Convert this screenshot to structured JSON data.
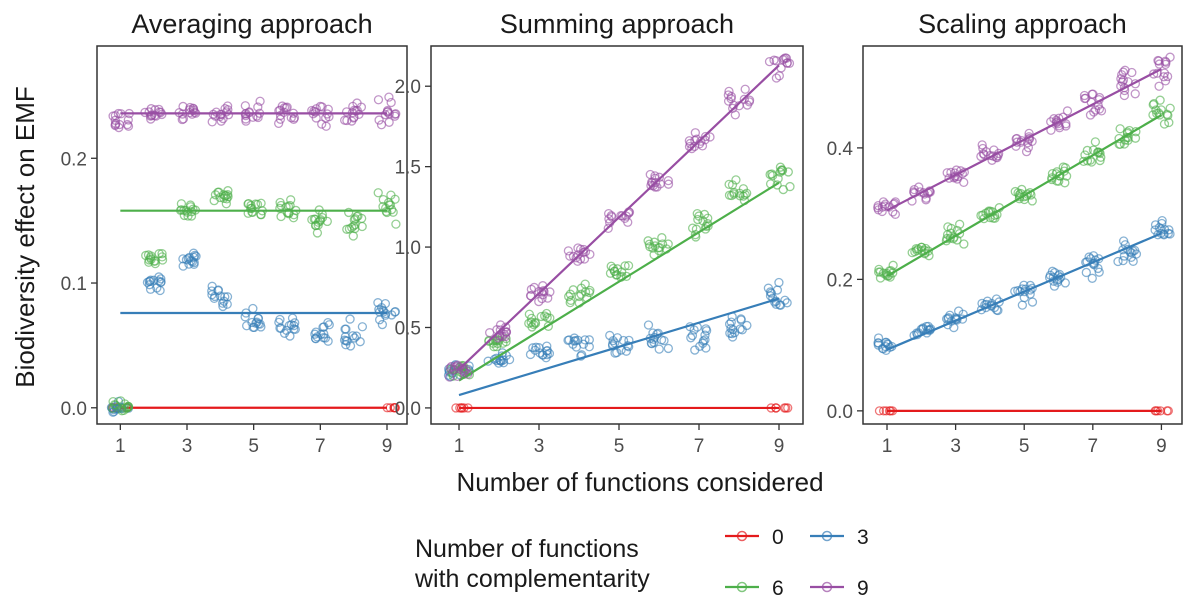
{
  "chart_data": {
    "type": "scatter",
    "ylabel": "Biodiversity effect on EMF",
    "xlabel": "Number of functions considered",
    "x_ticks": [
      1,
      3,
      5,
      7,
      9
    ],
    "xlim": [
      0.3,
      9.6
    ],
    "colors": {
      "0": "#e41a1c",
      "3": "#377eb8",
      "6": "#4daf4a",
      "9": "#984ea3"
    },
    "legend": {
      "title_lines": [
        "Number of functions",
        "with complementarity"
      ],
      "placement": "bottom",
      "entries": [
        {
          "label": "0",
          "key": "0"
        },
        {
          "label": "3",
          "key": "3"
        },
        {
          "label": "6",
          "key": "6"
        },
        {
          "label": "9",
          "key": "9"
        }
      ]
    },
    "panels": [
      {
        "title": "Averaging approach",
        "ylim": [
          -0.013,
          0.29
        ],
        "y_ticks": [
          0.0,
          0.1,
          0.2
        ],
        "y_tick_labels": [
          "0.0",
          "0.1",
          "0.2"
        ],
        "series": [
          {
            "key": "0",
            "x": [
              1,
              9
            ],
            "y": [
              0,
              0
            ],
            "fit": [
              [
                1,
                0.0
              ],
              [
                9,
                0.0
              ]
            ]
          },
          {
            "key": "3",
            "x": [
              1,
              2,
              3,
              4,
              5,
              6,
              7,
              8,
              9
            ],
            "y": [
              0,
              0.1,
              0.12,
              0.09,
              0.07,
              0.065,
              0.06,
              0.058,
              0.075
            ],
            "fit": [
              [
                1,
                0.076
              ],
              [
                9,
                0.076
              ]
            ]
          },
          {
            "key": "6",
            "x": [
              1,
              2,
              3,
              4,
              5,
              6,
              7,
              8,
              9
            ],
            "y": [
              0,
              0.12,
              0.16,
              0.17,
              0.16,
              0.16,
              0.15,
              0.15,
              0.158
            ],
            "fit": [
              [
                1,
                0.158
              ],
              [
                9,
                0.158
              ]
            ]
          },
          {
            "key": "9",
            "x": [
              1,
              2,
              3,
              4,
              5,
              6,
              7,
              8,
              9
            ],
            "y": [
              0.23,
              0.235,
              0.236,
              0.236,
              0.236,
              0.236,
              0.236,
              0.236,
              0.236
            ],
            "fit": [
              [
                1,
                0.236
              ],
              [
                9,
                0.236
              ]
            ]
          }
        ]
      },
      {
        "title": "Summing approach",
        "ylim": [
          -0.1,
          2.25
        ],
        "y_ticks": [
          0.0,
          0.5,
          1.0,
          1.5,
          2.0
        ],
        "y_tick_labels": [
          "0.0",
          "0.5",
          "1.0",
          "1.5",
          "2.0"
        ],
        "series": [
          {
            "key": "0",
            "x": [
              1,
              9
            ],
            "y": [
              0,
              0
            ],
            "fit": [
              [
                1,
                0.0
              ],
              [
                9,
                0.0
              ]
            ]
          },
          {
            "key": "3",
            "x": [
              1,
              2,
              3,
              4,
              5,
              6,
              7,
              8,
              9
            ],
            "y": [
              0.23,
              0.3,
              0.35,
              0.38,
              0.4,
              0.42,
              0.45,
              0.5,
              0.68
            ],
            "fit": [
              [
                1,
                0.08
              ],
              [
                9,
                0.68
              ]
            ]
          },
          {
            "key": "6",
            "x": [
              1,
              2,
              3,
              4,
              5,
              6,
              7,
              8,
              9
            ],
            "y": [
              0.23,
              0.4,
              0.55,
              0.7,
              0.85,
              1.0,
              1.15,
              1.35,
              1.42
            ],
            "fit": [
              [
                1,
                0.17
              ],
              [
                9,
                1.4
              ]
            ]
          },
          {
            "key": "9",
            "x": [
              1,
              2,
              3,
              4,
              5,
              6,
              7,
              8,
              9
            ],
            "y": [
              0.24,
              0.47,
              0.71,
              0.94,
              1.18,
              1.42,
              1.65,
              1.89,
              2.13
            ],
            "fit": [
              [
                1,
                0.24
              ],
              [
                9,
                2.13
              ]
            ]
          }
        ]
      },
      {
        "title": "Scaling approach",
        "ylim": [
          -0.02,
          0.555
        ],
        "y_ticks": [
          0.0,
          0.2,
          0.4
        ],
        "y_tick_labels": [
          "0.0",
          "0.2",
          "0.4"
        ],
        "series": [
          {
            "key": "0",
            "x": [
              1,
              9
            ],
            "y": [
              0,
              0
            ],
            "fit": [
              [
                1,
                0.0
              ],
              [
                9,
                0.0
              ]
            ]
          },
          {
            "key": "3",
            "x": [
              1,
              2,
              3,
              4,
              5,
              6,
              7,
              8,
              9
            ],
            "y": [
              0.1,
              0.12,
              0.14,
              0.16,
              0.18,
              0.2,
              0.22,
              0.24,
              0.27
            ],
            "fit": [
              [
                1,
                0.093
              ],
              [
                9,
                0.27
              ]
            ]
          },
          {
            "key": "6",
            "x": [
              1,
              2,
              3,
              4,
              5,
              6,
              7,
              8,
              9
            ],
            "y": [
              0.21,
              0.24,
              0.27,
              0.3,
              0.33,
              0.36,
              0.39,
              0.42,
              0.45
            ],
            "fit": [
              [
                1,
                0.205
              ],
              [
                9,
                0.45
              ]
            ]
          },
          {
            "key": "9",
            "x": [
              1,
              2,
              3,
              4,
              5,
              6,
              7,
              8,
              9
            ],
            "y": [
              0.31,
              0.33,
              0.36,
              0.39,
              0.41,
              0.44,
              0.47,
              0.5,
              0.52
            ],
            "fit": [
              [
                1,
                0.305
              ],
              [
                9,
                0.52
              ]
            ]
          }
        ]
      }
    ]
  }
}
